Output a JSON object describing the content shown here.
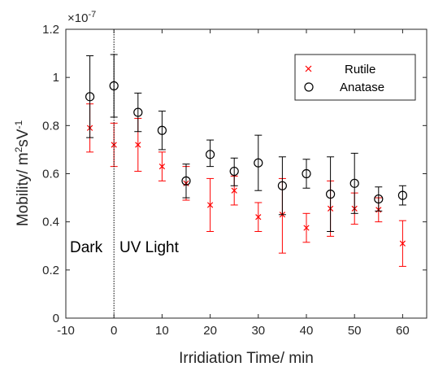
{
  "chart_data": {
    "type": "scatter",
    "xlabel": "Irridiation Time/ min",
    "ylabel_parts": [
      "Mobility/ m",
      "2",
      "sV",
      "-1"
    ],
    "y_multiplier": {
      "base": "×10",
      "exp": "-7"
    },
    "xlim": [
      -10,
      65
    ],
    "ylim": [
      0,
      1.2
    ],
    "x_ticks": [
      -10,
      0,
      10,
      20,
      30,
      40,
      50,
      60
    ],
    "y_ticks": [
      0,
      0.2,
      0.4,
      0.6,
      0.8,
      1,
      1.2
    ],
    "x_tick_labels": [
      "-10",
      "0",
      "10",
      "20",
      "30",
      "40",
      "50",
      "60"
    ],
    "y_tick_labels": [
      "0",
      "0.2",
      "0.4",
      "0.6",
      "0.8",
      "1",
      "1.2"
    ],
    "annotations": {
      "left": "Dark",
      "right": "UV Light",
      "divider_x": 0
    },
    "grid": false,
    "legend_position": "top-right",
    "series": [
      {
        "name": "Rutile",
        "marker": "x",
        "color": "#ff0000",
        "x": [
          -5,
          0,
          5,
          10,
          15,
          20,
          25,
          30,
          35,
          40,
          45,
          50,
          55,
          60
        ],
        "y": [
          0.79,
          0.72,
          0.72,
          0.63,
          0.56,
          0.47,
          0.53,
          0.42,
          0.43,
          0.375,
          0.455,
          0.455,
          0.45,
          0.31
        ],
        "err_low": [
          0.1,
          0.09,
          0.11,
          0.06,
          0.07,
          0.11,
          0.06,
          0.06,
          0.16,
          0.06,
          0.115,
          0.065,
          0.05,
          0.095
        ],
        "err_high": [
          0.1,
          0.09,
          0.11,
          0.06,
          0.07,
          0.11,
          0.06,
          0.06,
          0.15,
          0.06,
          0.115,
          0.065,
          0.05,
          0.095
        ]
      },
      {
        "name": "Anatase",
        "marker": "o",
        "color": "#000000",
        "x": [
          -5,
          0,
          5,
          10,
          15,
          20,
          25,
          30,
          35,
          40,
          45,
          50,
          55,
          60
        ],
        "y": [
          0.92,
          0.965,
          0.855,
          0.78,
          0.57,
          0.68,
          0.61,
          0.645,
          0.55,
          0.6,
          0.515,
          0.56,
          0.495,
          0.51
        ],
        "err_low": [
          0.17,
          0.13,
          0.08,
          0.08,
          0.07,
          0.05,
          0.06,
          0.115,
          0.12,
          0.06,
          0.155,
          0.125,
          0.05,
          0.04
        ],
        "err_high": [
          0.17,
          0.13,
          0.08,
          0.08,
          0.07,
          0.06,
          0.055,
          0.115,
          0.12,
          0.06,
          0.155,
          0.125,
          0.05,
          0.04
        ]
      }
    ]
  }
}
